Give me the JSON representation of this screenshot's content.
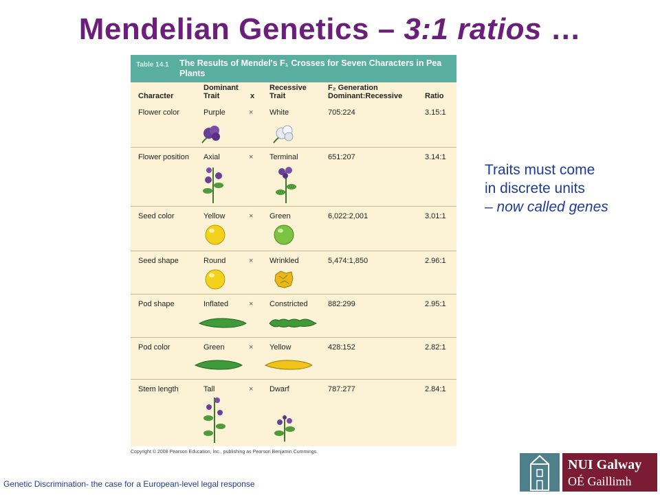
{
  "slide": {
    "title_main": "Mendelian Genetics – ",
    "title_italic": "3:1 ratios",
    "title_tail": " …"
  },
  "table": {
    "number": "Table 14.1",
    "caption": "The Results of Mendel's F₁ Crosses for Seven Characters in Pea Plants",
    "headers": {
      "character": "Character",
      "dominant_l1": "Dominant",
      "dominant_l2": "Trait",
      "x": "x",
      "recessive_l1": "Recessive",
      "recessive_l2": "Trait",
      "f2_l1": "F₂ Generation",
      "f2_l2": "Dominant:Recessive",
      "ratio": "Ratio"
    },
    "rows": [
      {
        "character": "Flower color",
        "dominant": "Purple",
        "x": "×",
        "recessive": "White",
        "f2": "705:224",
        "ratio": "3.15:1"
      },
      {
        "character": "Flower position",
        "dominant": "Axial",
        "x": "×",
        "recessive": "Terminal",
        "f2": "651:207",
        "ratio": "3.14:1"
      },
      {
        "character": "Seed color",
        "dominant": "Yellow",
        "x": "×",
        "recessive": "Green",
        "f2": "6,022:2,001",
        "ratio": "3.01:1"
      },
      {
        "character": "Seed shape",
        "dominant": "Round",
        "x": "×",
        "recessive": "Wrinkled",
        "f2": "5,474:1,850",
        "ratio": "2.96:1"
      },
      {
        "character": "Pod shape",
        "dominant": "Inflated",
        "x": "×",
        "recessive": "Constricted",
        "f2": "882:299",
        "ratio": "2.95:1"
      },
      {
        "character": "Pod color",
        "dominant": "Green",
        "x": "×",
        "recessive": "Yellow",
        "f2": "428:152",
        "ratio": "2.82:1"
      },
      {
        "character": "Stem length",
        "dominant": "Tall",
        "x": "×",
        "recessive": "Dwarf",
        "f2": "787:277",
        "ratio": "2.84:1"
      }
    ],
    "copyright": "Copyright © 2008 Pearson Education, Inc., publishing as Pearson Benjamin Cummings."
  },
  "side_note": {
    "line1": "Traits must come",
    "line2": "in discrete units",
    "line3": "– now called genes"
  },
  "footer": {
    "text": "Genetic Discrimination- the case for a  European-level legal response"
  },
  "logo": {
    "line1": "NUI Galway",
    "line2": "OÉ Gaillimh"
  },
  "colors": {
    "title": "#6b1f7a",
    "table_header": "#5aaea0",
    "table_bg": "#fcf3d6",
    "side_text": "#1f3b99",
    "logo_box": "#7a1c34"
  }
}
